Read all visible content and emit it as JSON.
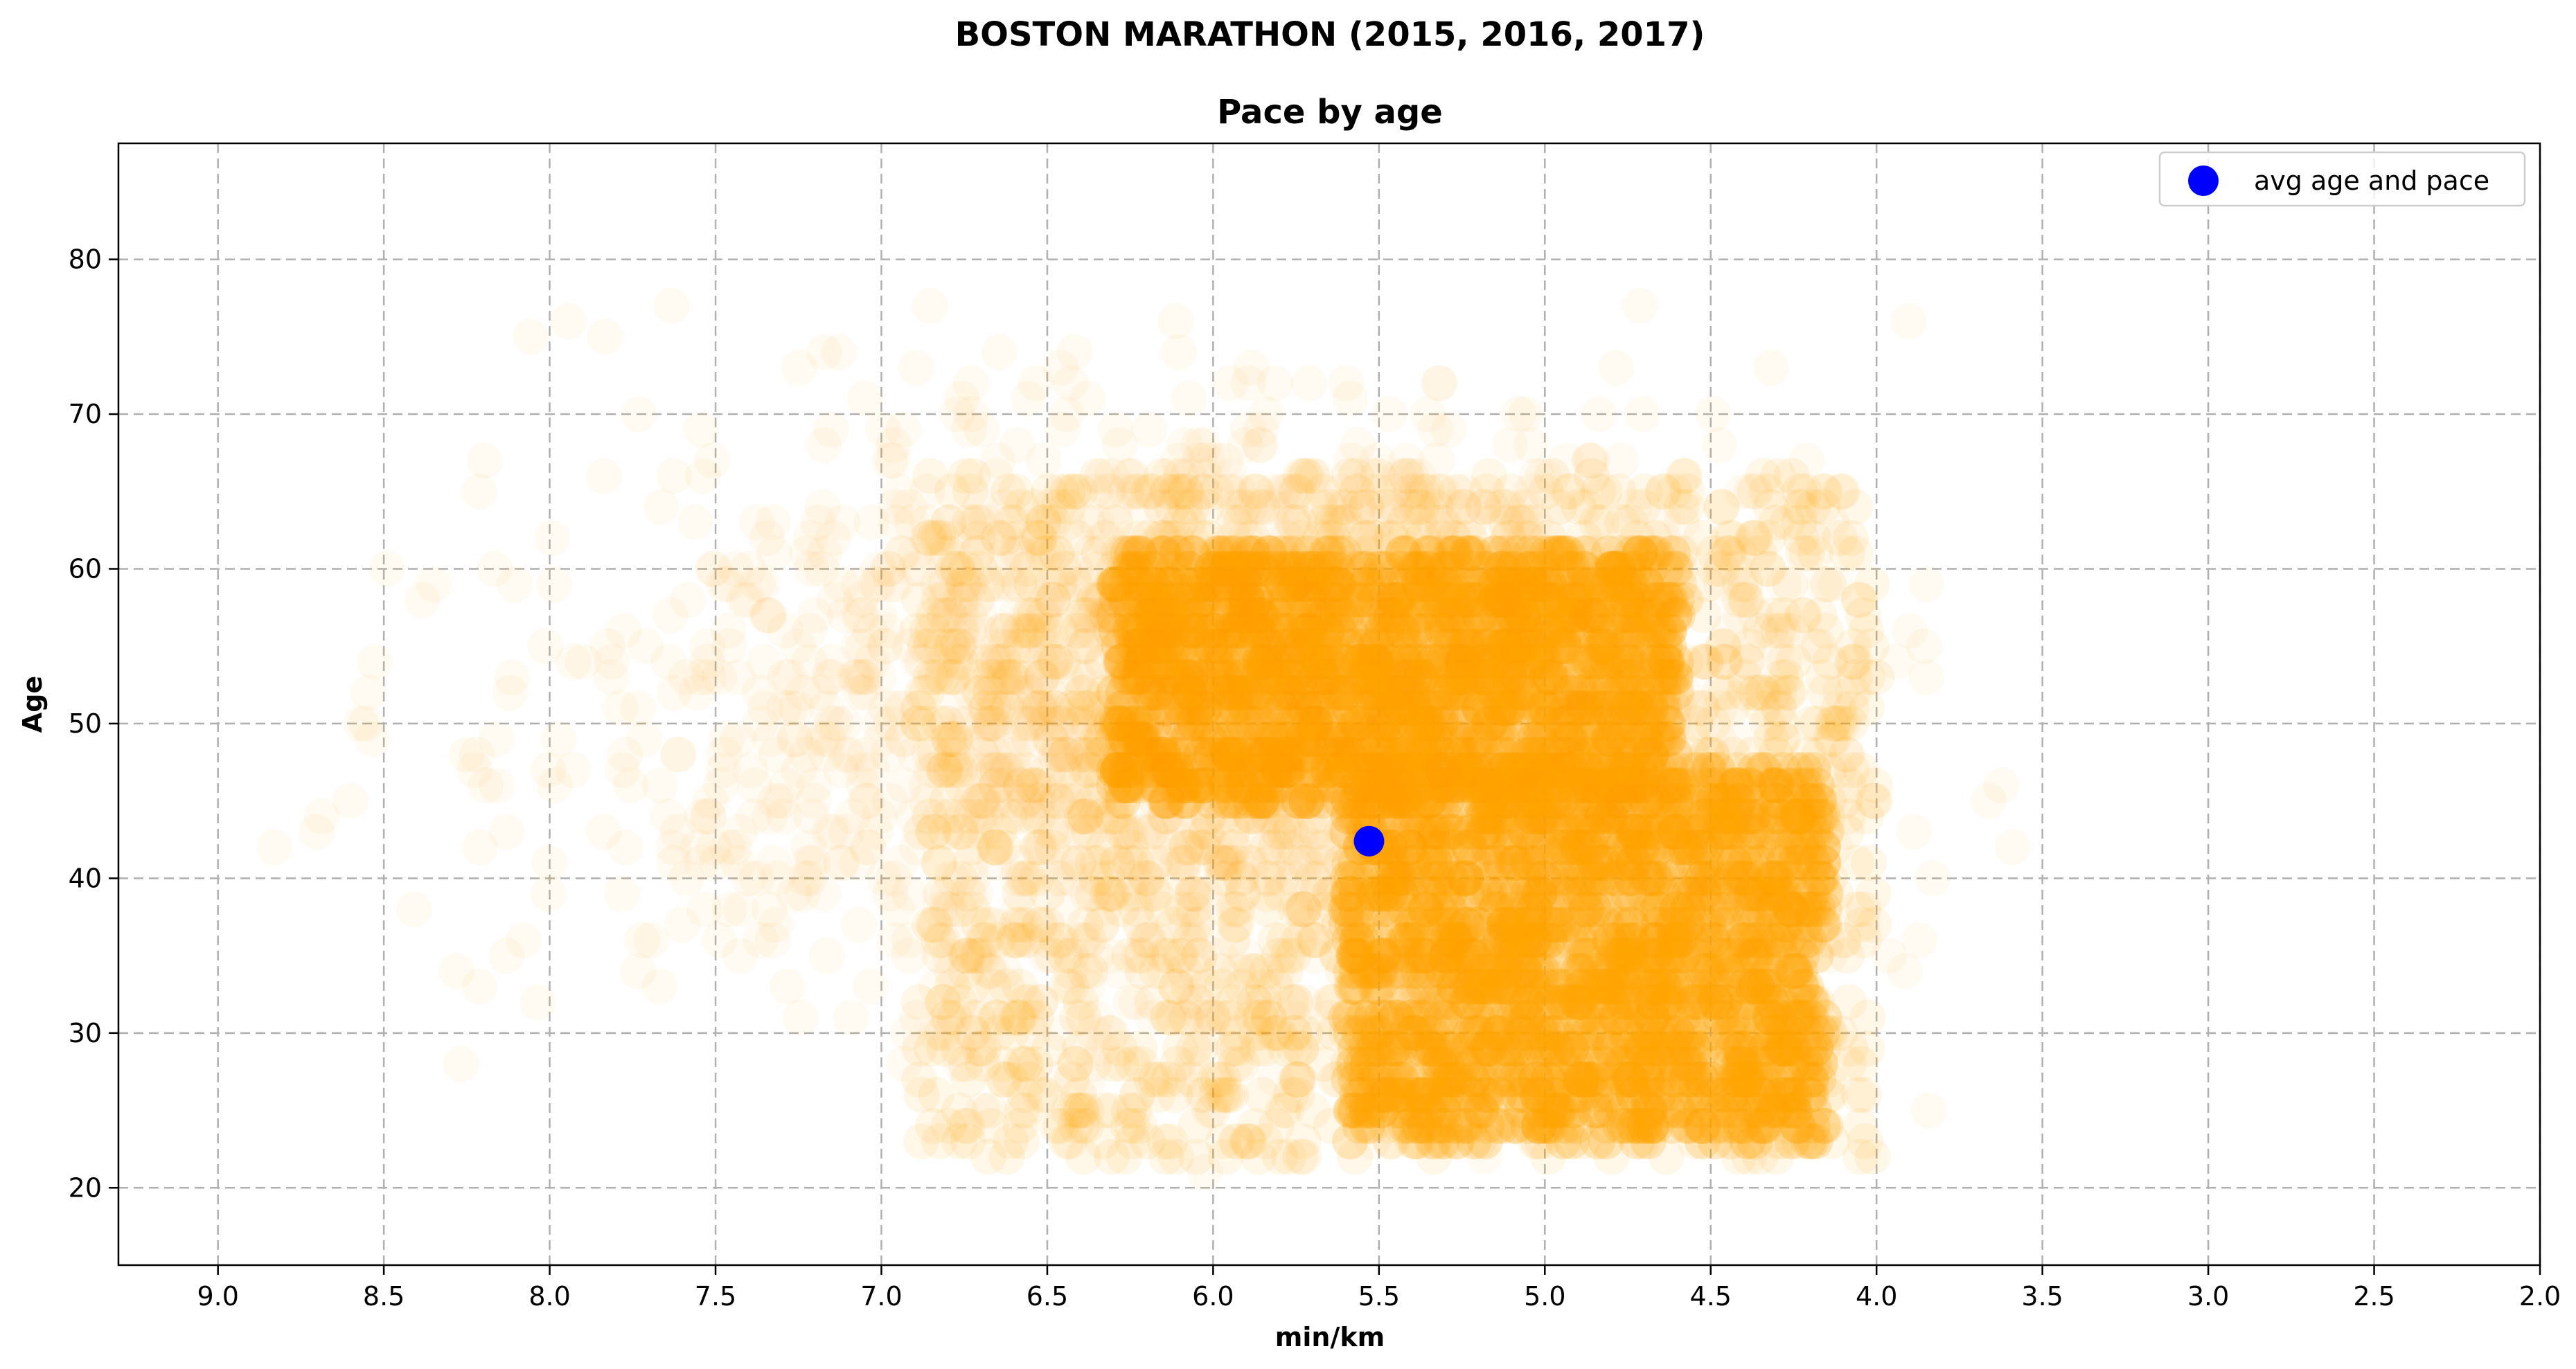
{
  "chart_data": {
    "type": "scatter",
    "suptitle": "BOSTON MARATHON (2015, 2016, 2017)",
    "title": "Pace by age",
    "xlabel": "min/km",
    "ylabel": "Age",
    "x_inverted": true,
    "xlim": [
      9.3,
      2.0
    ],
    "ylim": [
      15,
      87.5
    ],
    "xticks": [
      9.0,
      8.5,
      8.0,
      7.5,
      7.0,
      6.5,
      6.0,
      5.5,
      5.0,
      4.5,
      4.0,
      3.5,
      3.0,
      2.5,
      2.0
    ],
    "xtick_labels": [
      "9.0",
      "8.5",
      "8.0",
      "7.5",
      "7.0",
      "6.5",
      "6.0",
      "5.5",
      "5.0",
      "4.5",
      "4.0",
      "3.5",
      "3.0",
      "2.5",
      "2.0"
    ],
    "yticks": [
      20,
      30,
      40,
      50,
      60,
      70,
      80
    ],
    "ytick_labels": [
      "20",
      "30",
      "40",
      "50",
      "60",
      "70",
      "80"
    ],
    "grid": true,
    "legend_position": "top-right",
    "runner_color": "#ffa500",
    "runner_distribution": [
      {
        "pace_range": [
          4.15,
          5.6
        ],
        "age_range": [
          23,
          47
        ],
        "density": "dense"
      },
      {
        "pace_range": [
          4.6,
          6.3
        ],
        "age_range": [
          45,
          61
        ],
        "density": "dense"
      },
      {
        "pace_range": [
          4.0,
          6.9
        ],
        "age_range": [
          22,
          66
        ],
        "density": "medium"
      },
      {
        "pace_range": [
          3.3,
          8.9
        ],
        "age_range": [
          18,
          82
        ],
        "density": "sparse"
      }
    ],
    "series": [
      {
        "name": "avg age and pace",
        "color": "#0000ff",
        "x": [
          5.53
        ],
        "y": [
          42.4
        ]
      }
    ]
  }
}
